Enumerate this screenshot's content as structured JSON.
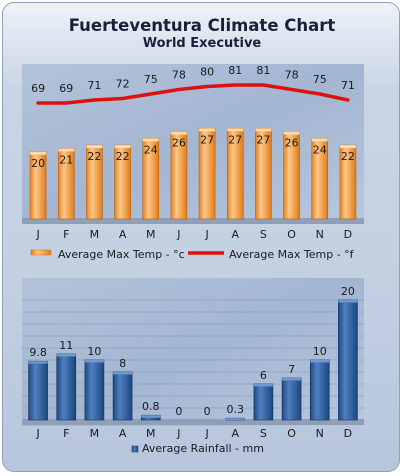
{
  "title": "Fuerteventura Climate Chart",
  "subtitle": "World Executive",
  "colors": {
    "bar_orange": "#f5a44a",
    "bar_orange_dark": "#c86d12",
    "line_red": "#e01010",
    "bar_blue": "#2a5a99",
    "bar_blue_dark": "#173a6b",
    "panel_bg": "#a9bbd6"
  },
  "chart_data": [
    {
      "type": "bar",
      "title": "",
      "categories": [
        "J",
        "F",
        "M",
        "A",
        "M",
        "J",
        "J",
        "A",
        "S",
        "O",
        "N",
        "D"
      ],
      "series": [
        {
          "name": "Average Max Temp - °c",
          "type": "bar",
          "values": [
            20,
            21,
            22,
            22,
            24,
            26,
            27,
            27,
            27,
            26,
            24,
            22
          ]
        },
        {
          "name": "Average Max Temp - °f",
          "type": "line",
          "values": [
            69,
            69,
            71,
            72,
            75,
            78,
            80,
            81,
            81,
            78,
            75,
            71
          ]
        }
      ],
      "ylim": [
        0,
        30
      ],
      "legend_position": "bottom",
      "grid": false
    },
    {
      "type": "bar",
      "title": "",
      "categories": [
        "J",
        "F",
        "M",
        "A",
        "M",
        "J",
        "J",
        "A",
        "S",
        "O",
        "N",
        "D"
      ],
      "series": [
        {
          "name": "Average Rainfall - mm",
          "values": [
            9.8,
            11,
            10,
            8,
            0.8,
            0,
            0,
            0.3,
            6,
            7,
            10,
            20
          ]
        }
      ],
      "ylim": [
        0,
        20
      ],
      "legend_position": "bottom",
      "grid": true
    }
  ]
}
